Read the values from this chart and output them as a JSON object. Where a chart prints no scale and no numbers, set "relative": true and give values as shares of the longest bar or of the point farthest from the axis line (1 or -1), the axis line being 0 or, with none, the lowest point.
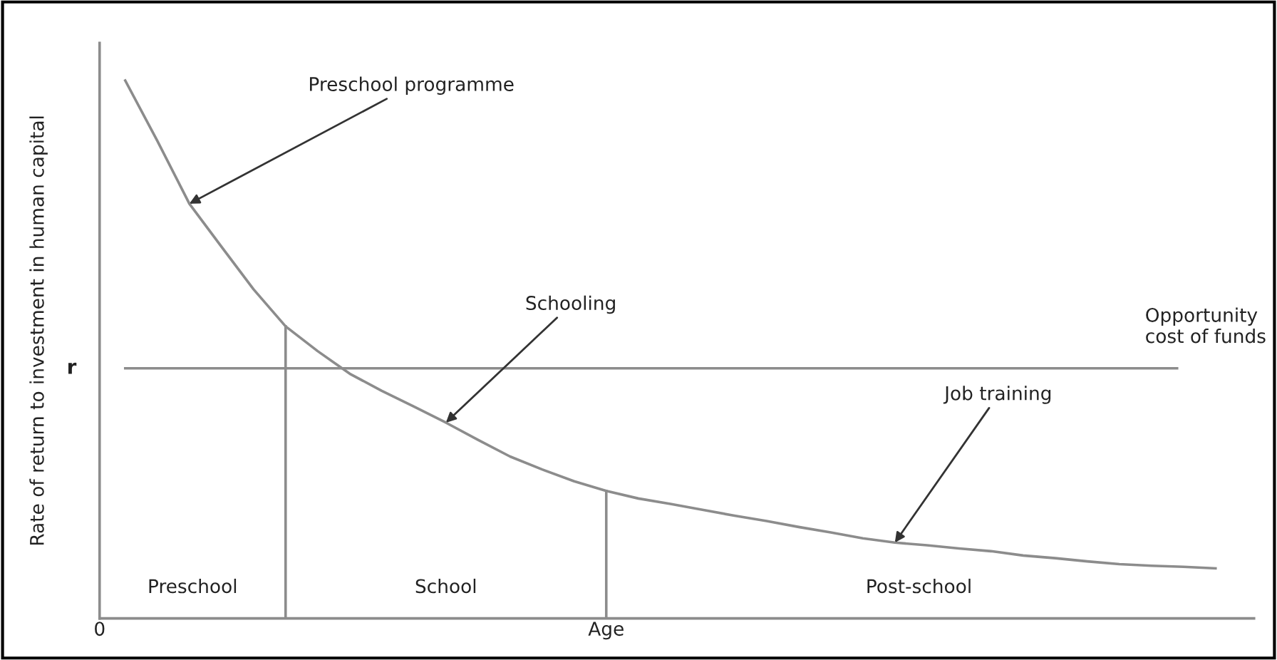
{
  "chart_data": {
    "type": "line",
    "relative": true,
    "ylabel": "Rate of return to investment in human capital",
    "xlabel": "Age",
    "categories": [
      null,
      null,
      null,
      null,
      null,
      null,
      null,
      null,
      null,
      null,
      null,
      null,
      null,
      null,
      null,
      null,
      null,
      null,
      null,
      null,
      null,
      null,
      null,
      null,
      null,
      null,
      null,
      null,
      null,
      null,
      null,
      null,
      null,
      null,
      null
    ],
    "series": [
      {
        "color": "#8c8c8c",
        "values": [
          1.0,
          0.888,
          0.771,
          0.691,
          0.612,
          0.543,
          0.497,
          0.455,
          0.423,
          0.394,
          0.364,
          0.332,
          0.301,
          0.277,
          0.255,
          0.237,
          0.223,
          0.213,
          0.202,
          0.191,
          0.181,
          0.17,
          0.16,
          0.149,
          0.141,
          0.136,
          0.13,
          0.125,
          0.117,
          0.112,
          0.106,
          0.101,
          0.098,
          0.096,
          0.093
        ]
      }
    ],
    "ref_lines": [
      {
        "axis": "y",
        "value": 0.465,
        "label": "Opportunity\ncost of funds",
        "color": "#8c8c8c"
      }
    ],
    "annotations": [
      "Preschool programme",
      "Schooling",
      "Job training",
      "r",
      "Preschool",
      "School",
      "Post-school",
      "0"
    ],
    "marker": "none",
    "line_style": "solid",
    "grid": false,
    "legend": false
  }
}
